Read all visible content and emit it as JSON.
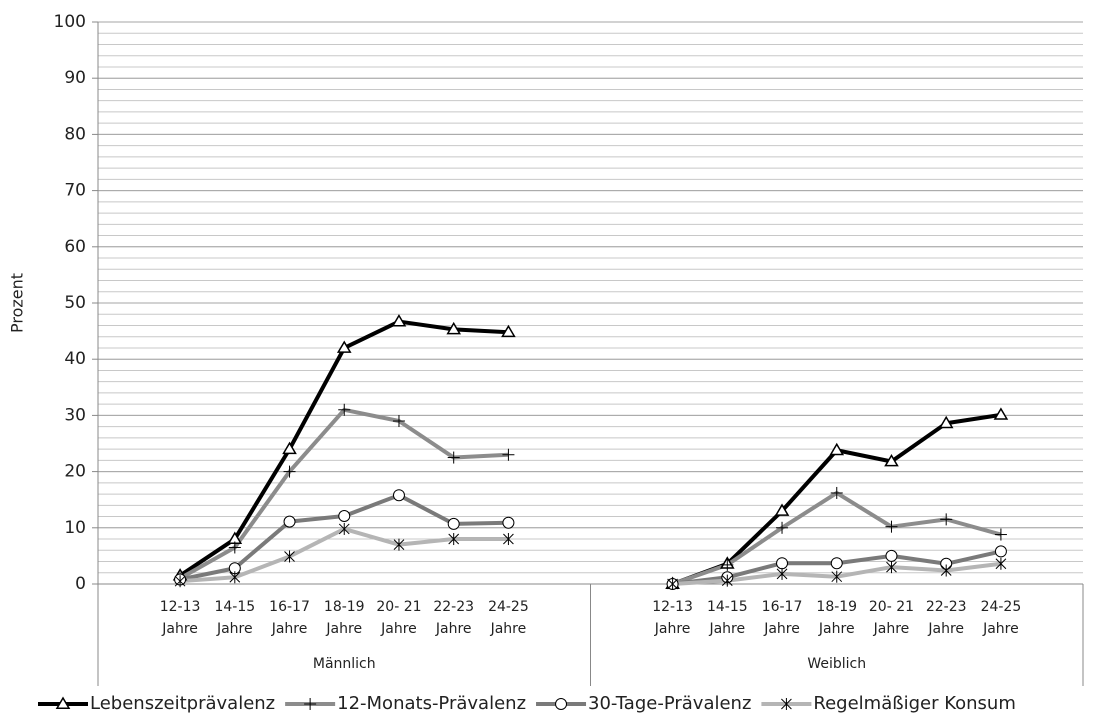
{
  "chart_data": {
    "type": "line",
    "y_label": "Prozent",
    "categories": [
      null,
      "12-13\nJahre",
      "14-15\nJahre",
      "16-17\nJahre",
      "18-19\nJahre",
      "20- 21\nJahre",
      "22-23\nJahre",
      "24-25\nJahre",
      null,
      null,
      "12-13\nJahre",
      "14-15\nJahre",
      "16-17\nJahre",
      "18-19\nJahre",
      "20- 21\nJahre",
      "22-23\nJahre",
      "24-25\nJahre",
      null
    ],
    "groups": [
      "Männlich",
      "Weiblich"
    ],
    "series": [
      {
        "name": "Lebenszeitprävalenz",
        "color": "#000000",
        "marker": "triangle",
        "values": [
          null,
          1.5,
          8,
          24,
          42,
          46.7,
          45.3,
          44.8,
          null,
          null,
          0,
          3.6,
          13,
          23.8,
          21.8,
          28.6,
          30.1,
          null
        ]
      },
      {
        "name": "12-Monats-Prävalenz",
        "color": "#8c8c8c",
        "marker": "plus",
        "values": [
          null,
          1,
          6.5,
          20,
          31,
          29,
          22.5,
          23,
          null,
          null,
          0,
          3.4,
          10,
          16.2,
          10.2,
          11.5,
          8.8,
          null
        ]
      },
      {
        "name": "30-Tage-Prävalenz",
        "color": "#7a7a7a",
        "marker": "circle",
        "values": [
          null,
          0.8,
          2.8,
          11.1,
          12.1,
          15.8,
          10.7,
          10.9,
          null,
          null,
          0,
          1.2,
          3.7,
          3.7,
          5,
          3.6,
          5.8,
          null
        ]
      },
      {
        "name": "Regelmäßiger Konsum",
        "color": "#b5b5b5",
        "marker": "asterisk",
        "values": [
          null,
          0.5,
          1.2,
          4.9,
          9.8,
          7,
          8,
          8,
          null,
          null,
          0,
          0.6,
          1.8,
          1.3,
          3,
          2.4,
          3.6,
          null
        ]
      }
    ],
    "ylim": [
      0,
      100
    ],
    "yticks": [
      0,
      10,
      20,
      30,
      40,
      50,
      60,
      70,
      80,
      90,
      100
    ],
    "grid": true,
    "minor_ystep": 2,
    "legend": "bottom"
  }
}
